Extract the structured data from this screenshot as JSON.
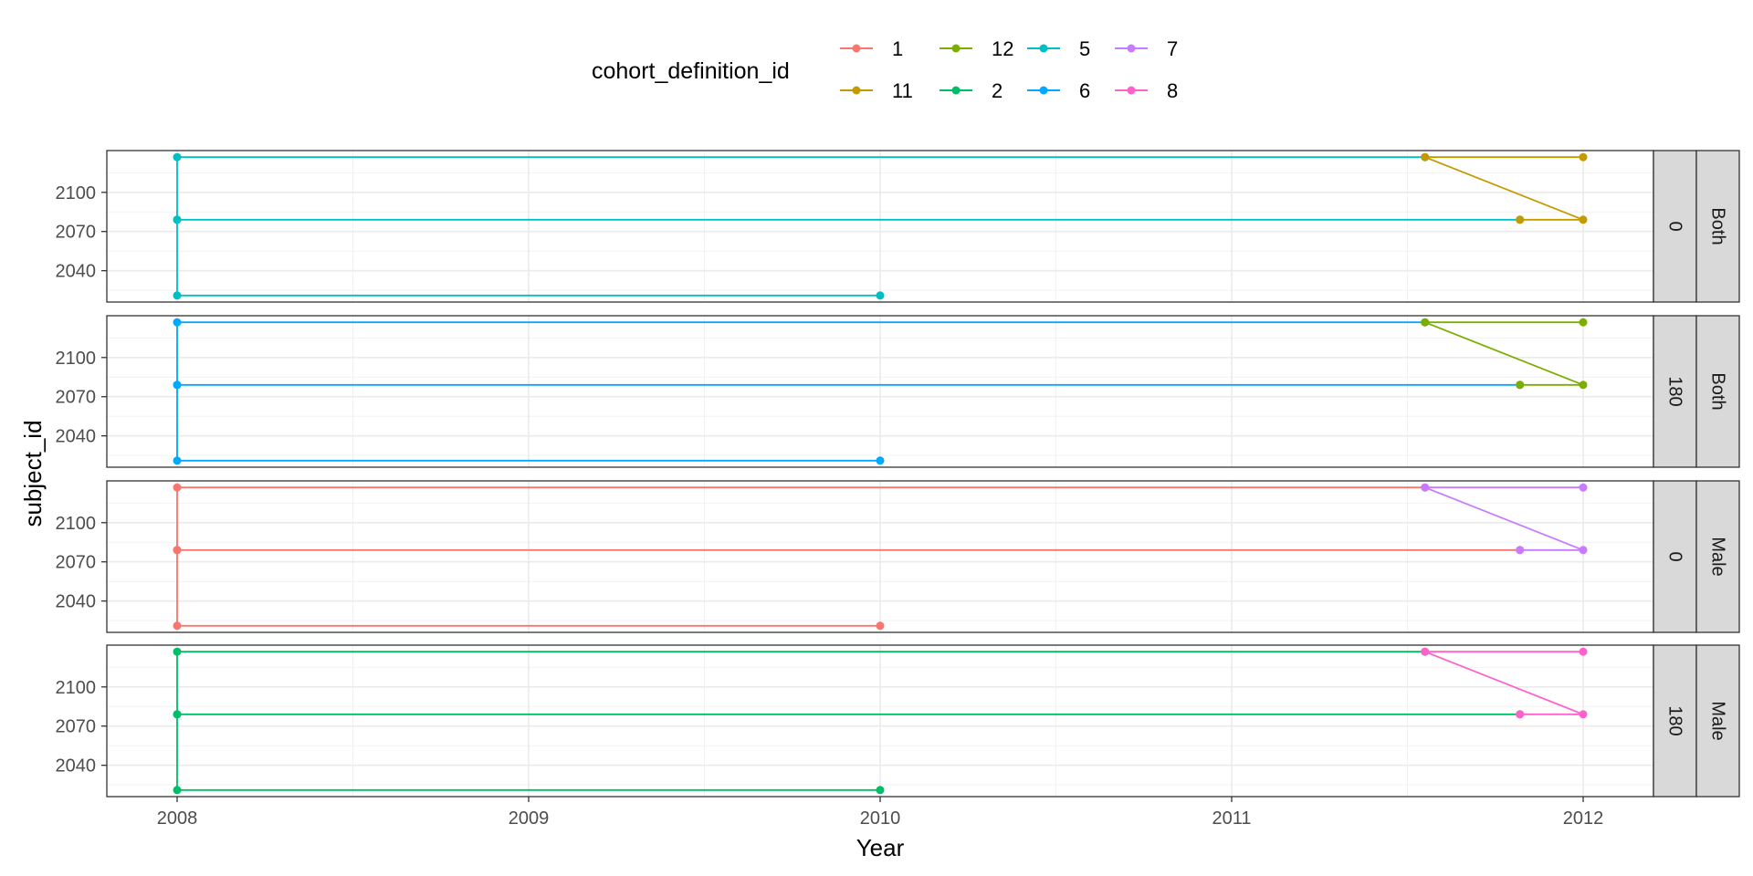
{
  "chart_data": {
    "type": "line",
    "title": "",
    "xlabel": "Year",
    "ylabel": "subject_id",
    "xlim": [
      2007.8,
      2012.2
    ],
    "x_ticks": [
      2008,
      2009,
      2010,
      2011,
      2012
    ],
    "x_tick_labels": [
      "2008",
      "2009",
      "2010",
      "2011",
      "2012"
    ],
    "ylim": [
      2016,
      2132
    ],
    "y_ticks": [
      2040,
      2070,
      2100
    ],
    "y_tick_labels": [
      "2040",
      "2070",
      "2100"
    ],
    "grid": true,
    "legend": {
      "title": "cohort_definition_id",
      "position": "top",
      "entries": [
        {
          "label": "1",
          "color": "#F8766D"
        },
        {
          "label": "11",
          "color": "#C49A00"
        },
        {
          "label": "12",
          "color": "#7CAE00"
        },
        {
          "label": "2",
          "color": "#00BE67"
        },
        {
          "label": "5",
          "color": "#00BFC4"
        },
        {
          "label": "6",
          "color": "#00A9FF"
        },
        {
          "label": "7",
          "color": "#C77CFF"
        },
        {
          "label": "8",
          "color": "#FF61CC"
        }
      ]
    },
    "panels": [
      {
        "strip_inner": "0",
        "strip_outer": "Both",
        "series": [
          {
            "name": "5",
            "color": "#00BFC4",
            "x": [
              2010.0,
              2008.0,
              2008.0,
              2011.82,
              2008.0,
              2008.0,
              2011.55
            ],
            "y": [
              2021,
              2021,
              2079,
              2079,
              2079,
              2127,
              2127
            ]
          },
          {
            "name": "11",
            "color": "#C49A00",
            "x": [
              2011.82,
              2012.0,
              2011.55,
              2012.0
            ],
            "y": [
              2079,
              2079,
              2127,
              2127
            ]
          }
        ]
      },
      {
        "strip_inner": "180",
        "strip_outer": "Both",
        "series": [
          {
            "name": "6",
            "color": "#00A9FF",
            "x": [
              2010.0,
              2008.0,
              2008.0,
              2011.82,
              2008.0,
              2008.0,
              2011.55
            ],
            "y": [
              2021,
              2021,
              2079,
              2079,
              2079,
              2127,
              2127
            ]
          },
          {
            "name": "12",
            "color": "#7CAE00",
            "x": [
              2011.82,
              2012.0,
              2011.55,
              2012.0
            ],
            "y": [
              2079,
              2079,
              2127,
              2127
            ]
          }
        ]
      },
      {
        "strip_inner": "0",
        "strip_outer": "Male",
        "series": [
          {
            "name": "1",
            "color": "#F8766D",
            "x": [
              2010.0,
              2008.0,
              2008.0,
              2011.82,
              2008.0,
              2008.0,
              2011.55
            ],
            "y": [
              2021,
              2021,
              2079,
              2079,
              2079,
              2127,
              2127
            ]
          },
          {
            "name": "7",
            "color": "#C77CFF",
            "x": [
              2011.82,
              2012.0,
              2011.55,
              2012.0
            ],
            "y": [
              2079,
              2079,
              2127,
              2127
            ]
          }
        ]
      },
      {
        "strip_inner": "180",
        "strip_outer": "Male",
        "series": [
          {
            "name": "2",
            "color": "#00BE67",
            "x": [
              2010.0,
              2008.0,
              2008.0,
              2011.82,
              2008.0,
              2008.0,
              2011.55
            ],
            "y": [
              2021,
              2021,
              2079,
              2079,
              2079,
              2127,
              2127
            ]
          },
          {
            "name": "8",
            "color": "#FF61CC",
            "x": [
              2011.82,
              2012.0,
              2011.55,
              2012.0
            ],
            "y": [
              2079,
              2079,
              2127,
              2127
            ]
          }
        ]
      }
    ]
  }
}
